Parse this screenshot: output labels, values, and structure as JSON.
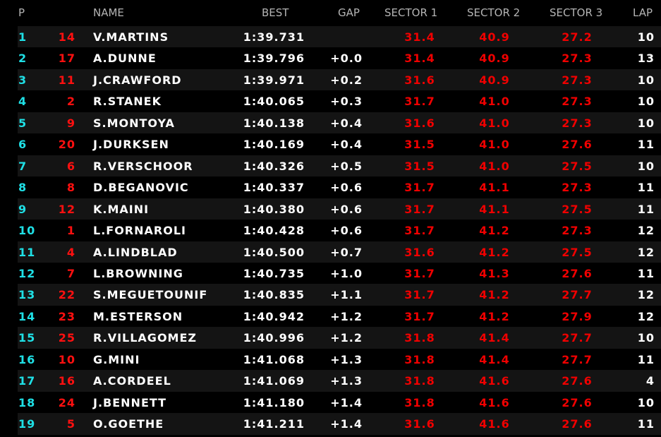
{
  "header": {
    "pos": "P",
    "name": "NAME",
    "best": "BEST",
    "gap": "GAP",
    "s1": "SECTOR 1",
    "s2": "SECTOR 2",
    "s3": "SECTOR 3",
    "lap": "LAP"
  },
  "colors": {
    "position": "#1fe0e6",
    "car_number": "#ff1010",
    "sector": "#f00000",
    "text": "#ffffff",
    "header": "#b4b4b4",
    "stripe": "#141414"
  },
  "rows": [
    {
      "pos": "1",
      "num": "14",
      "name": "V.MARTINS",
      "best": "1:39.731",
      "gap": "",
      "s1": "31.4",
      "s2": "40.9",
      "s3": "27.2",
      "lap": "10"
    },
    {
      "pos": "2",
      "num": "17",
      "name": "A.DUNNE",
      "best": "1:39.796",
      "gap": "+0.0",
      "s1": "31.4",
      "s2": "40.9",
      "s3": "27.3",
      "lap": "13"
    },
    {
      "pos": "3",
      "num": "11",
      "name": "J.CRAWFORD",
      "best": "1:39.971",
      "gap": "+0.2",
      "s1": "31.6",
      "s2": "40.9",
      "s3": "27.3",
      "lap": "10"
    },
    {
      "pos": "4",
      "num": "2",
      "name": "R.STANEK",
      "best": "1:40.065",
      "gap": "+0.3",
      "s1": "31.7",
      "s2": "41.0",
      "s3": "27.3",
      "lap": "10"
    },
    {
      "pos": "5",
      "num": "9",
      "name": "S.MONTOYA",
      "best": "1:40.138",
      "gap": "+0.4",
      "s1": "31.6",
      "s2": "41.0",
      "s3": "27.3",
      "lap": "10"
    },
    {
      "pos": "6",
      "num": "20",
      "name": "J.DURKSEN",
      "best": "1:40.169",
      "gap": "+0.4",
      "s1": "31.5",
      "s2": "41.0",
      "s3": "27.6",
      "lap": "11"
    },
    {
      "pos": "7",
      "num": "6",
      "name": "R.VERSCHOOR",
      "best": "1:40.326",
      "gap": "+0.5",
      "s1": "31.5",
      "s2": "41.0",
      "s3": "27.5",
      "lap": "10"
    },
    {
      "pos": "8",
      "num": "8",
      "name": "D.BEGANOVIC",
      "best": "1:40.337",
      "gap": "+0.6",
      "s1": "31.7",
      "s2": "41.1",
      "s3": "27.3",
      "lap": "11"
    },
    {
      "pos": "9",
      "num": "12",
      "name": "K.MAINI",
      "best": "1:40.380",
      "gap": "+0.6",
      "s1": "31.7",
      "s2": "41.1",
      "s3": "27.5",
      "lap": "11"
    },
    {
      "pos": "10",
      "num": "1",
      "name": "L.FORNAROLI",
      "best": "1:40.428",
      "gap": "+0.6",
      "s1": "31.7",
      "s2": "41.2",
      "s3": "27.3",
      "lap": "12"
    },
    {
      "pos": "11",
      "num": "4",
      "name": "A.LINDBLAD",
      "best": "1:40.500",
      "gap": "+0.7",
      "s1": "31.6",
      "s2": "41.2",
      "s3": "27.5",
      "lap": "12"
    },
    {
      "pos": "12",
      "num": "7",
      "name": "L.BROWNING",
      "best": "1:40.735",
      "gap": "+1.0",
      "s1": "31.7",
      "s2": "41.3",
      "s3": "27.6",
      "lap": "11"
    },
    {
      "pos": "13",
      "num": "22",
      "name": "S.MEGUETOUNIF",
      "best": "1:40.835",
      "gap": "+1.1",
      "s1": "31.7",
      "s2": "41.2",
      "s3": "27.7",
      "lap": "12"
    },
    {
      "pos": "14",
      "num": "23",
      "name": "M.ESTERSON",
      "best": "1:40.942",
      "gap": "+1.2",
      "s1": "31.7",
      "s2": "41.2",
      "s3": "27.9",
      "lap": "12"
    },
    {
      "pos": "15",
      "num": "25",
      "name": "R.VILLAGOMEZ",
      "best": "1:40.996",
      "gap": "+1.2",
      "s1": "31.8",
      "s2": "41.4",
      "s3": "27.7",
      "lap": "10"
    },
    {
      "pos": "16",
      "num": "10",
      "name": "G.MINI",
      "best": "1:41.068",
      "gap": "+1.3",
      "s1": "31.8",
      "s2": "41.4",
      "s3": "27.7",
      "lap": "11"
    },
    {
      "pos": "17",
      "num": "16",
      "name": "A.CORDEEL",
      "best": "1:41.069",
      "gap": "+1.3",
      "s1": "31.8",
      "s2": "41.6",
      "s3": "27.6",
      "lap": "4"
    },
    {
      "pos": "18",
      "num": "24",
      "name": "J.BENNETT",
      "best": "1:41.180",
      "gap": "+1.4",
      "s1": "31.8",
      "s2": "41.6",
      "s3": "27.6",
      "lap": "10"
    },
    {
      "pos": "19",
      "num": "5",
      "name": "O.GOETHE",
      "best": "1:41.211",
      "gap": "+1.4",
      "s1": "31.6",
      "s2": "41.6",
      "s3": "27.6",
      "lap": "11"
    }
  ]
}
